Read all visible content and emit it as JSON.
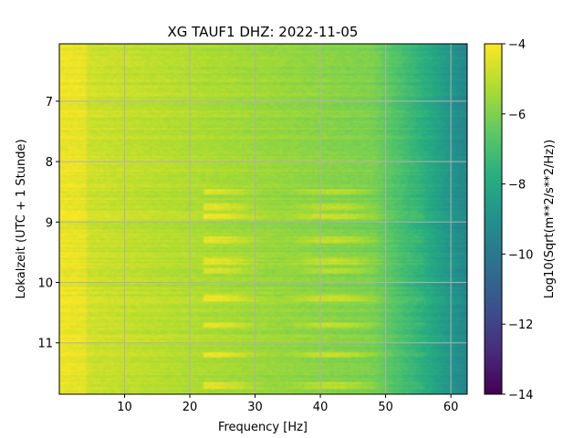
{
  "chart_data": {
    "type": "heatmap",
    "title": "XG TAUF1  DHZ: 2022-11-05",
    "xlabel": "Frequency [Hz]",
    "ylabel": "Lokalzeit (UTC + 1 Stunde)",
    "xlim": [
      0,
      62.5
    ],
    "ylim": [
      11.85,
      6.05
    ],
    "xticks": [
      10,
      20,
      30,
      40,
      50,
      60
    ],
    "yticks": [
      7,
      8,
      9,
      10,
      11
    ],
    "grid": true,
    "colormap": "viridis",
    "colorbar": {
      "label": "Log10(Sqrt(m**2/s**2/Hz))",
      "vmin": -14,
      "vmax": -4,
      "ticks": [
        -4,
        -6,
        -8,
        -10,
        -12,
        -14
      ]
    },
    "bands": [
      {
        "time": 8.5,
        "level": -7.4
      },
      {
        "time": 8.75,
        "level": -6.8
      },
      {
        "time": 8.9,
        "level": -7.0
      },
      {
        "time": 9.3,
        "level": -7.2
      },
      {
        "time": 9.65,
        "level": -6.6
      },
      {
        "time": 9.8,
        "level": -6.7
      },
      {
        "time": 10.25,
        "level": -7.1
      },
      {
        "time": 10.7,
        "level": -7.4
      },
      {
        "time": 11.2,
        "level": -7.3
      },
      {
        "time": 11.7,
        "level": -7.6
      }
    ]
  },
  "colors": {
    "grid": "#b0b0b0",
    "axis": "#000000",
    "background": "#ffffff"
  }
}
